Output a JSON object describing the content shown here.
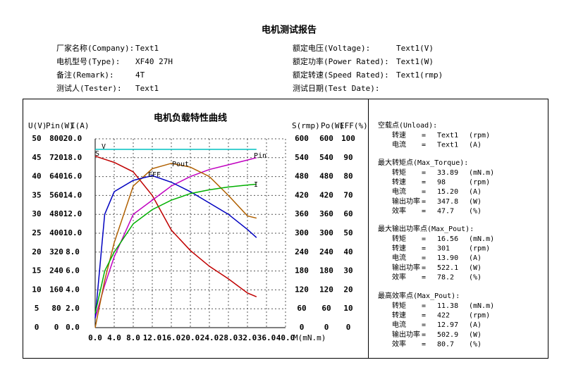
{
  "header": {
    "title": "电机测试报告",
    "fields": [
      [
        [
          "厂家名称(Company):",
          "Text1"
        ],
        [
          "额定电压(Voltage):",
          "Text1(V)"
        ]
      ],
      [
        [
          "电机型号(Type):",
          "XF40 27H"
        ],
        [
          "额定功率(Power Rated):",
          "Text1(W)"
        ]
      ],
      [
        [
          "备注(Remark):",
          "4T"
        ],
        [
          "额定转速(Speed Rated):",
          "Text1(rmp)"
        ]
      ],
      [
        [
          "测试人(Tester):",
          "Text1"
        ],
        [
          "测试日期(Test Date):"
        ]
      ]
    ]
  },
  "chart_data": {
    "type": "line",
    "title": "电机负载特性曲线",
    "x_label": "M(mN.m)",
    "xlim": [
      0,
      40
    ],
    "xticks": [
      {
        "value": 0,
        "label": "0.0"
      },
      {
        "value": 4,
        "label": "4.0"
      },
      {
        "value": 8,
        "label": "8.0"
      },
      {
        "value": 12,
        "label": "12.0"
      },
      {
        "value": 16,
        "label": "16.0"
      },
      {
        "value": 20,
        "label": "20.0"
      },
      {
        "value": 24,
        "label": "24.0"
      },
      {
        "value": 28,
        "label": "28.0"
      },
      {
        "value": 32,
        "label": "32.0"
      },
      {
        "value": 36,
        "label": "36.0"
      },
      {
        "value": 40,
        "label": "40.0"
      }
    ],
    "grid": true,
    "axes": [
      {
        "label": "U(V)",
        "color": "#00a0c0",
        "side": "left",
        "lim": [
          0,
          50
        ],
        "ticks": [
          0,
          5,
          10,
          15,
          20,
          25,
          30,
          35,
          40,
          45,
          50
        ]
      },
      {
        "label": "Pin(W)",
        "color": "#c000c0",
        "side": "left",
        "lim": [
          0,
          800
        ],
        "ticks": [
          0,
          80,
          160,
          240,
          320,
          400,
          480,
          560,
          640,
          720,
          800
        ]
      },
      {
        "label": "I(A)",
        "color": "#008000",
        "side": "left",
        "lim": [
          0,
          20
        ],
        "ticks": [
          {
            "value": 0,
            "label": "0.0"
          },
          {
            "value": 2,
            "label": "2.0"
          },
          {
            "value": 4,
            "label": "4.0"
          },
          {
            "value": 6,
            "label": "6.0"
          },
          {
            "value": 8,
            "label": "8.0"
          },
          {
            "value": 10,
            "label": "10.0"
          },
          {
            "value": 12,
            "label": "12.0"
          },
          {
            "value": 14,
            "label": "14.0"
          },
          {
            "value": 16,
            "label": "16.0"
          },
          {
            "value": 18,
            "label": "18.0"
          },
          {
            "value": 20,
            "label": "20.0"
          }
        ]
      },
      {
        "label": "S(rmp)",
        "color": "#d00000",
        "side": "right",
        "lim": [
          0,
          600
        ],
        "ticks": [
          0,
          60,
          120,
          180,
          240,
          300,
          360,
          420,
          480,
          540,
          600
        ]
      },
      {
        "label": "Po(W)",
        "color": "#a05000",
        "side": "right",
        "lim": [
          0,
          600
        ],
        "ticks": [
          0,
          60,
          120,
          180,
          240,
          300,
          360,
          420,
          480,
          540,
          600
        ]
      },
      {
        "label": "EFF(%)",
        "color": "#0000c0",
        "side": "right",
        "lim": [
          0,
          100
        ],
        "ticks": [
          0,
          10,
          20,
          30,
          40,
          50,
          60,
          70,
          80,
          90,
          100
        ]
      }
    ],
    "x": [
      0,
      2,
      4,
      8,
      12,
      16,
      20,
      24,
      28,
      32,
      33.9
    ],
    "series": [
      {
        "name": "V",
        "axis": 0,
        "color": "#00c0c0",
        "values": [
          47.2,
          47.2,
          47.2,
          47.2,
          47.2,
          47.2,
          47.2,
          47.2,
          47.2,
          47.2,
          47.2
        ]
      },
      {
        "name": "S",
        "axis": 3,
        "color": "#c00000",
        "values": [
          545,
          535,
          525,
          495,
          420,
          310,
          245,
          195,
          155,
          110,
          98
        ]
      },
      {
        "name": "Pin",
        "axis": 1,
        "color": "#c000c0",
        "values": [
          40,
          180,
          300,
          480,
          540,
          600,
          640,
          670,
          690,
          710,
          720
        ]
      },
      {
        "name": "Pout",
        "axis": 4,
        "color": "#b06000",
        "values": [
          0,
          150,
          270,
          450,
          505,
          522,
          510,
          480,
          420,
          355,
          348
        ]
      },
      {
        "name": "EFF",
        "axis": 5,
        "color": "#0000c0",
        "values": [
          5,
          60,
          72,
          78,
          80.5,
          77,
          72,
          66,
          60,
          52,
          47.7
        ]
      },
      {
        "name": "I",
        "axis": 2,
        "color": "#00b000",
        "values": [
          1.5,
          6,
          8,
          11,
          12.5,
          13.5,
          14.2,
          14.6,
          14.9,
          15.1,
          15.2
        ]
      }
    ]
  },
  "panel": {
    "sections": [
      {
        "title": "空载点(Unload):",
        "rows": [
          [
            "转速",
            "=",
            "Text1",
            "(rpm)"
          ],
          [
            "电流",
            "=",
            "Text1",
            "(A)"
          ]
        ]
      },
      {
        "title": "最大转矩点(Max_Torque):",
        "rows": [
          [
            "转矩",
            "=",
            "33.89",
            "(mN.m)"
          ],
          [
            "转速",
            "=",
            "98",
            "(rpm)"
          ],
          [
            "电流",
            "=",
            "15.20",
            "(A)"
          ],
          [
            "输出功率",
            "=",
            "347.8",
            "(W)"
          ],
          [
            "效率",
            "=",
            "47.7",
            "(%)"
          ]
        ]
      },
      {
        "title": "最大输出功率点(Max_Pout):",
        "rows": [
          [
            "转矩",
            "=",
            "16.56",
            "(mN.m)"
          ],
          [
            "转速",
            "=",
            "301",
            "(rpm)"
          ],
          [
            "电流",
            "=",
            "13.90",
            "(A)"
          ],
          [
            "输出功率",
            "=",
            "522.1",
            "(W)"
          ],
          [
            "效率",
            "=",
            "78.2",
            "(%)"
          ]
        ]
      },
      {
        "title": "最高效率点(Max_Pout):",
        "rows": [
          [
            "转矩",
            "=",
            "11.38",
            "(mN.m)"
          ],
          [
            "转速",
            "=",
            "422",
            "(rpm)"
          ],
          [
            "电流",
            "=",
            "12.97",
            "(A)"
          ],
          [
            "输出功率",
            "=",
            "502.9",
            "(W)"
          ],
          [
            "效率",
            "=",
            "80.7",
            "(%)"
          ]
        ]
      }
    ]
  }
}
